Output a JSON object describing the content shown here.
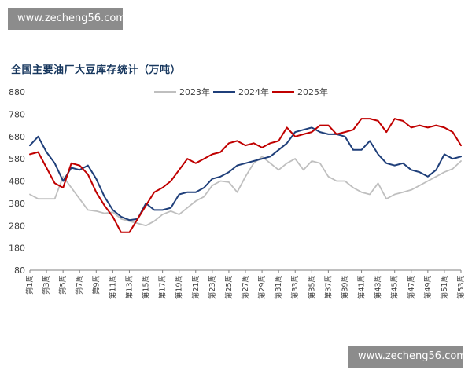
{
  "watermark_top": "www.zecheng56.com",
  "watermark_bottom": "www.zecheng56.com",
  "chart_data": {
    "type": "line",
    "title": "全国主要油厂大豆库存统计（万吨）",
    "ylim": [
      80,
      880
    ],
    "yticks": [
      80,
      180,
      280,
      380,
      480,
      580,
      680,
      780,
      880
    ],
    "grid": false,
    "legend_position": "top",
    "x_tick_labels": [
      "第1周",
      "第3周",
      "第5周",
      "第7周",
      "第9周",
      "第11周",
      "第13周",
      "第15周",
      "第17周",
      "第19周",
      "第21周",
      "第23周",
      "第25周",
      "第27周",
      "第29周",
      "第31周",
      "第33周",
      "第35周",
      "第37周",
      "第39周",
      "第41周",
      "第43周",
      "第45周",
      "第47周",
      "第49周",
      "第51周",
      "第53周"
    ],
    "x": [
      1,
      2,
      3,
      4,
      5,
      6,
      7,
      8,
      9,
      10,
      11,
      12,
      13,
      14,
      15,
      16,
      17,
      18,
      19,
      20,
      21,
      22,
      23,
      24,
      25,
      26,
      27,
      28,
      29,
      30,
      31,
      32,
      33,
      34,
      35,
      36,
      37,
      38,
      39,
      40,
      41,
      42,
      43,
      44,
      45,
      46,
      47,
      48,
      49,
      50,
      51,
      52,
      53
    ],
    "series": [
      {
        "name": "2023年",
        "color": "#bfbfbf",
        "values": [
          420,
          400,
          400,
          400,
          500,
          450,
          400,
          350,
          345,
          335,
          340,
          310,
          300,
          290,
          280,
          300,
          330,
          345,
          330,
          360,
          390,
          410,
          460,
          480,
          475,
          430,
          500,
          560,
          590,
          560,
          530,
          560,
          580,
          530,
          570,
          560,
          500,
          480,
          480,
          450,
          430,
          420,
          470,
          400,
          420,
          430,
          440,
          460,
          480,
          500,
          520,
          535,
          570
        ]
      },
      {
        "name": "2024年",
        "color": "#1f3f7a",
        "values": [
          640,
          680,
          610,
          560,
          480,
          540,
          530,
          550,
          490,
          410,
          350,
          320,
          305,
          310,
          380,
          350,
          350,
          360,
          420,
          430,
          430,
          450,
          490,
          500,
          520,
          550,
          560,
          570,
          580,
          590,
          620,
          650,
          700,
          710,
          720,
          700,
          690,
          690,
          680,
          620,
          620,
          660,
          600,
          560,
          550,
          560,
          530,
          520,
          500,
          530,
          600,
          580,
          590
        ]
      },
      {
        "name": "2025年",
        "color": "#c00000",
        "values": [
          600,
          610,
          540,
          470,
          450,
          560,
          550,
          510,
          430,
          370,
          320,
          250,
          250,
          310,
          370,
          430,
          450,
          480,
          530,
          580,
          560,
          580,
          600,
          610,
          650,
          660,
          640,
          650,
          630,
          650,
          660,
          720,
          680,
          690,
          700,
          730,
          730,
          690,
          700,
          710,
          760,
          760,
          750,
          700,
          760,
          750,
          720,
          730,
          720,
          730,
          720,
          700,
          640
        ]
      }
    ]
  }
}
